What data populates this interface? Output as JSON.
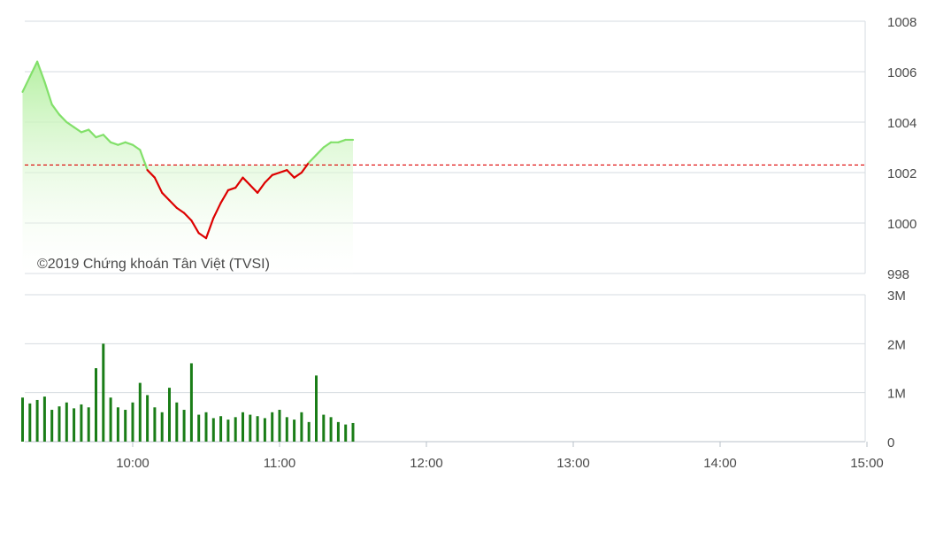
{
  "watermark": "©2019 Chứng khoán Tân Việt (TVSI)",
  "colors": {
    "up_line": "#82e06a",
    "up_fill": "#b6f0a3",
    "down_line": "#dd0000",
    "reference_line": "#dd0000",
    "volume_bar": "#1a7d17",
    "grid": "#d6dbe0"
  },
  "chart_data": [
    {
      "type": "area",
      "xlabel": "",
      "ylabel": "",
      "ylim": [
        998,
        1008
      ],
      "ytick_labels": [
        "1008",
        "1006",
        "1004",
        "1002",
        "1000",
        "998"
      ],
      "ytick_values": [
        1008,
        1006,
        1004,
        1002,
        1000,
        998
      ],
      "reference_value": 1002.3,
      "grid": true,
      "series": [
        {
          "x": [
            "09:15",
            "09:18",
            "09:21",
            "09:24",
            "09:27",
            "09:30",
            "09:33",
            "09:36",
            "09:39",
            "09:42",
            "09:45",
            "09:48",
            "09:51",
            "09:54",
            "09:57",
            "10:00",
            "10:03",
            "10:06",
            "10:09",
            "10:12",
            "10:15",
            "10:18",
            "10:21",
            "10:24",
            "10:27",
            "10:30",
            "10:33",
            "10:36",
            "10:39",
            "10:42",
            "10:45",
            "10:48",
            "10:51",
            "10:54",
            "10:57",
            "11:00",
            "11:03",
            "11:06",
            "11:09",
            "11:12",
            "11:15",
            "11:18",
            "11:21",
            "11:24",
            "11:27",
            "11:30"
          ],
          "values": [
            1005.2,
            1005.8,
            1006.4,
            1005.6,
            1004.7,
            1004.3,
            1004.0,
            1003.8,
            1003.6,
            1003.7,
            1003.4,
            1003.5,
            1003.2,
            1003.1,
            1003.2,
            1003.1,
            1002.9,
            1002.1,
            1001.8,
            1001.2,
            1000.9,
            1000.6,
            1000.4,
            1000.1,
            999.6,
            999.4,
            1000.2,
            1000.8,
            1001.3,
            1001.4,
            1001.8,
            1001.5,
            1001.2,
            1001.6,
            1001.9,
            1002.0,
            1002.1,
            1001.8,
            1002.0,
            1002.4,
            1002.7,
            1003.0,
            1003.2,
            1003.2,
            1003.3,
            1003.3
          ]
        }
      ]
    },
    {
      "type": "bar",
      "xlabel": "",
      "ylabel": "",
      "ylim": [
        0,
        3000000
      ],
      "ytick_labels": [
        "3M",
        "2M",
        "1M",
        "0"
      ],
      "ytick_values": [
        3000000,
        2000000,
        1000000,
        0
      ],
      "grid": true,
      "xtick_labels": [
        "10:00",
        "11:00",
        "12:00",
        "13:00",
        "14:00",
        "15:00"
      ],
      "series": [
        {
          "x": [
            "09:15",
            "09:18",
            "09:21",
            "09:24",
            "09:27",
            "09:30",
            "09:33",
            "09:36",
            "09:39",
            "09:42",
            "09:45",
            "09:48",
            "09:51",
            "09:54",
            "09:57",
            "10:00",
            "10:03",
            "10:06",
            "10:09",
            "10:12",
            "10:15",
            "10:18",
            "10:21",
            "10:24",
            "10:27",
            "10:30",
            "10:33",
            "10:36",
            "10:39",
            "10:42",
            "10:45",
            "10:48",
            "10:51",
            "10:54",
            "10:57",
            "11:00",
            "11:03",
            "11:06",
            "11:09",
            "11:12",
            "11:15",
            "11:18",
            "11:21",
            "11:24",
            "11:27",
            "11:30"
          ],
          "values": [
            900000,
            780000,
            850000,
            920000,
            650000,
            720000,
            800000,
            680000,
            760000,
            700000,
            1500000,
            2000000,
            900000,
            700000,
            650000,
            800000,
            1200000,
            950000,
            700000,
            600000,
            1100000,
            800000,
            650000,
            1600000,
            550000,
            600000,
            480000,
            520000,
            450000,
            500000,
            600000,
            550000,
            520000,
            480000,
            600000,
            650000,
            500000,
            450000,
            600000,
            400000,
            1350000,
            550000,
            500000,
            400000,
            350000,
            380000
          ]
        }
      ]
    }
  ]
}
